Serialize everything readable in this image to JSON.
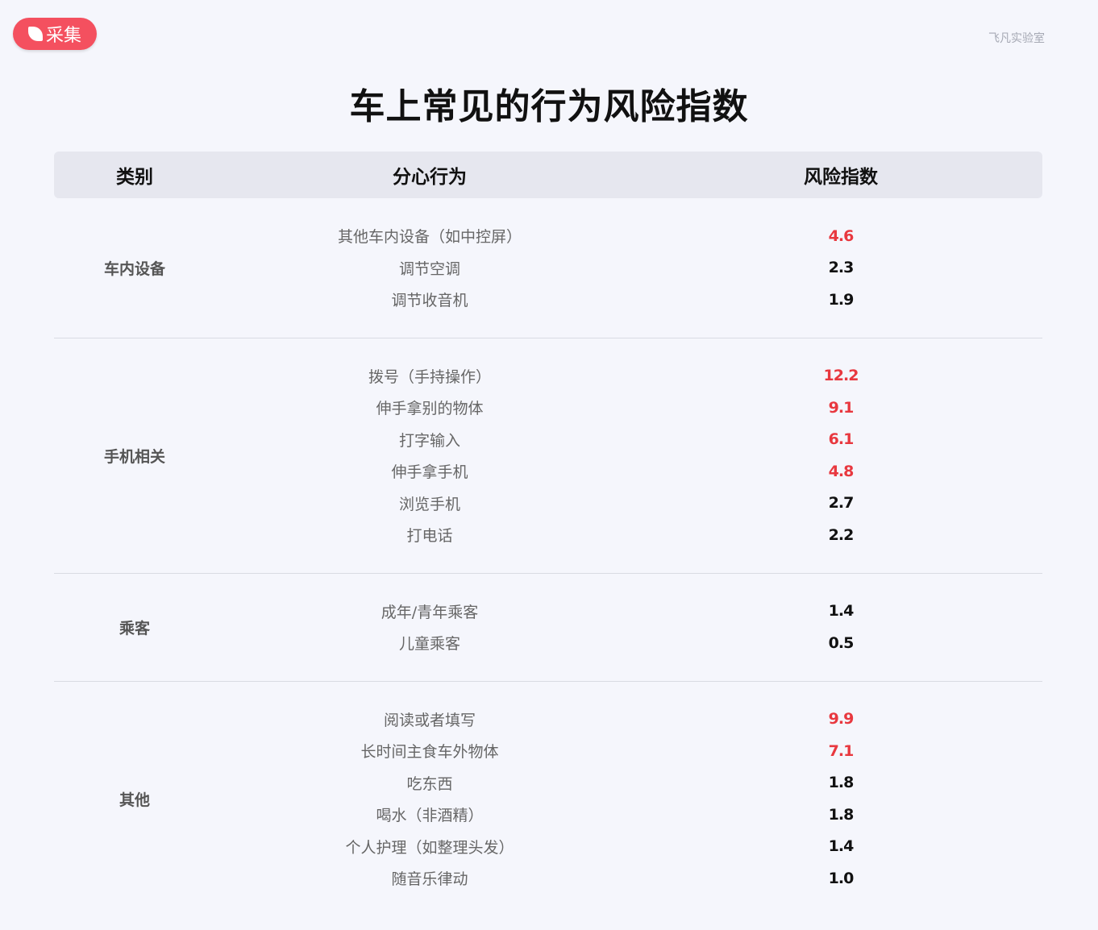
{
  "badge": {
    "label": "采集",
    "icon": "leaf-icon"
  },
  "brand": "飞凡实验室",
  "title": "车上常见的行为风险指数",
  "colors": {
    "high": "#e8383f",
    "normal": "#111111",
    "badge": "#f4505f"
  },
  "header": {
    "category": "类别",
    "behavior": "分心行为",
    "score": "风险指数"
  },
  "groups": [
    {
      "category": "车内设备",
      "rows": [
        {
          "behavior": "其他车内设备（如中控屏）",
          "score": "4.6",
          "high": true
        },
        {
          "behavior": "调节空调",
          "score": "2.3",
          "high": false
        },
        {
          "behavior": "调节收音机",
          "score": "1.9",
          "high": false
        }
      ]
    },
    {
      "category": "手机相关",
      "rows": [
        {
          "behavior": "拨号（手持操作）",
          "score": "12.2",
          "high": true
        },
        {
          "behavior": "伸手拿别的物体",
          "score": "9.1",
          "high": true
        },
        {
          "behavior": "打字输入",
          "score": "6.1",
          "high": true
        },
        {
          "behavior": "伸手拿手机",
          "score": "4.8",
          "high": true
        },
        {
          "behavior": "浏览手机",
          "score": "2.7",
          "high": false
        },
        {
          "behavior": "打电话",
          "score": "2.2",
          "high": false
        }
      ]
    },
    {
      "category": "乘客",
      "rows": [
        {
          "behavior": "成年/青年乘客",
          "score": "1.4",
          "high": false
        },
        {
          "behavior": "儿童乘客",
          "score": "0.5",
          "high": false
        }
      ]
    },
    {
      "category": "其他",
      "rows": [
        {
          "behavior": "阅读或者填写",
          "score": "9.9",
          "high": true
        },
        {
          "behavior": "长时间主食车外物体",
          "score": "7.1",
          "high": true
        },
        {
          "behavior": "吃东西",
          "score": "1.8",
          "high": false
        },
        {
          "behavior": "喝水（非酒精）",
          "score": "1.8",
          "high": false
        },
        {
          "behavior": "个人护理（如整理头发）",
          "score": "1.4",
          "high": false
        },
        {
          "behavior": "随音乐律动",
          "score": "1.0",
          "high": false
        }
      ]
    }
  ]
}
